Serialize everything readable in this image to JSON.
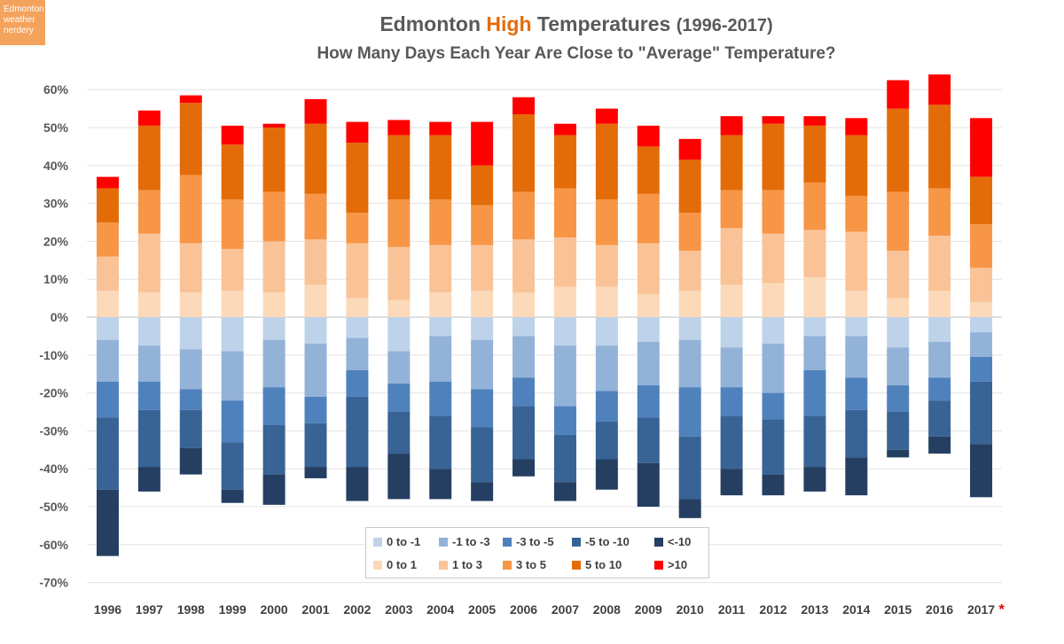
{
  "badge": {
    "line1": "Edmonton",
    "line2": "weather",
    "line3": "nerdery",
    "color": "#f4a35d"
  },
  "chart_data": {
    "type": "bar",
    "stacked": true,
    "title_part1": "Edmonton ",
    "title_highlight": "High",
    "title_part2": " Temperatures ",
    "title_years": "(1996-2017)",
    "subtitle": "How Many Days Each Year Are Close to \"Average\" Temperature?",
    "categories": [
      "1996",
      "1997",
      "1998",
      "1999",
      "2000",
      "2001",
      "2002",
      "2003",
      "2004",
      "2005",
      "2006",
      "2007",
      "2008",
      "2009",
      "2010",
      "2011",
      "2012",
      "2013",
      "2014",
      "2015",
      "2016",
      "2017"
    ],
    "last_category_mark": "*",
    "ylim": [
      -70,
      60
    ],
    "yticks": [
      60,
      50,
      40,
      30,
      20,
      10,
      0,
      -10,
      -20,
      -30,
      -40,
      -50,
      -60,
      -70
    ],
    "ytick_labels": [
      "60%",
      "50%",
      "40%",
      "30%",
      "20%",
      "10%",
      "0%",
      "-10%",
      "-20%",
      "-30%",
      "-40%",
      "-50%",
      "-60%",
      "-70%"
    ],
    "grid": true,
    "legend_position": "bottom-center",
    "series": [
      {
        "name": "0 to -1",
        "color": "#bed3ea",
        "values": [
          -6,
          -7.5,
          -8.5,
          -9,
          -6,
          -7,
          -5.5,
          -9,
          -5,
          -6,
          -5,
          -7.5,
          -7.5,
          -6.5,
          -6,
          -8,
          -7,
          -5,
          -5,
          -8,
          -6.5,
          -4
        ]
      },
      {
        "name": "-1 to -3",
        "color": "#93b2d8",
        "values": [
          -11,
          -9.5,
          -10.5,
          -13,
          -12.5,
          -14,
          -8.5,
          -8.5,
          -12,
          -13,
          -11,
          -16,
          -12,
          -11.5,
          -12.5,
          -10.5,
          -13,
          -9,
          -11,
          -10,
          -9.5,
          -6.5
        ]
      },
      {
        "name": "-3 to -5",
        "color": "#4f81bd",
        "values": [
          -9.5,
          -7.5,
          -5.5,
          -11,
          -10,
          -7,
          -7,
          -7.5,
          -9,
          -10,
          -7.5,
          -7.5,
          -8,
          -8.5,
          -13,
          -7.5,
          -7,
          -12,
          -8.5,
          -7,
          -6,
          -6.5
        ]
      },
      {
        "name": "-5 to -10",
        "color": "#386395",
        "values": [
          -19,
          -15,
          -10,
          -12.5,
          -13,
          -11.5,
          -18.5,
          -11,
          -14,
          -14.5,
          -14,
          -12.5,
          -10,
          -12,
          -16.5,
          -14,
          -14.5,
          -13.5,
          -12.5,
          -10,
          -9.5,
          -16.5
        ]
      },
      {
        "name": "<-10",
        "color": "#243f62",
        "values": [
          -17.5,
          -6.5,
          -7,
          -3.5,
          -8,
          -3,
          -9,
          -12,
          -8,
          -5,
          -4.5,
          -5,
          -8,
          -11.5,
          -5,
          -7,
          -5.5,
          -6.5,
          -10,
          -2,
          -4.5,
          -14
        ]
      },
      {
        "name": "0 to 1",
        "color": "#fcd9b8",
        "values": [
          7,
          6.5,
          6.5,
          7,
          6.5,
          8.5,
          5,
          4.5,
          6.5,
          7,
          6.5,
          8,
          8,
          6,
          7,
          8.5,
          9,
          10.5,
          7,
          5,
          7,
          4
        ]
      },
      {
        "name": "1 to 3",
        "color": "#f9c397",
        "values": [
          9,
          15.5,
          13,
          11,
          13.5,
          12,
          14.5,
          14,
          12.5,
          12,
          14,
          13,
          11,
          13.5,
          10.5,
          15,
          13,
          12.5,
          15.5,
          12.5,
          14.5,
          9
        ]
      },
      {
        "name": "3 to 5",
        "color": "#f79646",
        "values": [
          9,
          11.5,
          18,
          13,
          13,
          12,
          8,
          12.5,
          12,
          10.5,
          12.5,
          13,
          12,
          13,
          10,
          10,
          11.5,
          12.5,
          9.5,
          15.5,
          12.5,
          11.5
        ]
      },
      {
        "name": "5 to 10",
        "color": "#e36c09",
        "values": [
          9,
          17,
          19,
          14.5,
          17,
          18.5,
          18.5,
          17,
          17,
          10.5,
          20.5,
          14,
          20,
          12.5,
          14,
          14.5,
          17.5,
          15,
          16,
          22,
          22,
          12.5
        ]
      },
      {
        "name": ">10",
        "color": "#ff0000",
        "values": [
          3,
          4,
          2,
          5,
          1,
          6.5,
          5.5,
          4,
          3.5,
          11.5,
          4.5,
          3,
          4,
          5.5,
          5.5,
          5,
          2,
          2.5,
          4.5,
          7.5,
          8,
          15.5
        ]
      }
    ],
    "legend_rows": [
      [
        "0 to -1",
        "-1 to -3",
        "-3 to -5",
        "-5 to -10",
        "<-10"
      ],
      [
        "0 to 1",
        "1 to 3",
        "3 to 5",
        "5 to 10",
        ">10"
      ]
    ]
  }
}
